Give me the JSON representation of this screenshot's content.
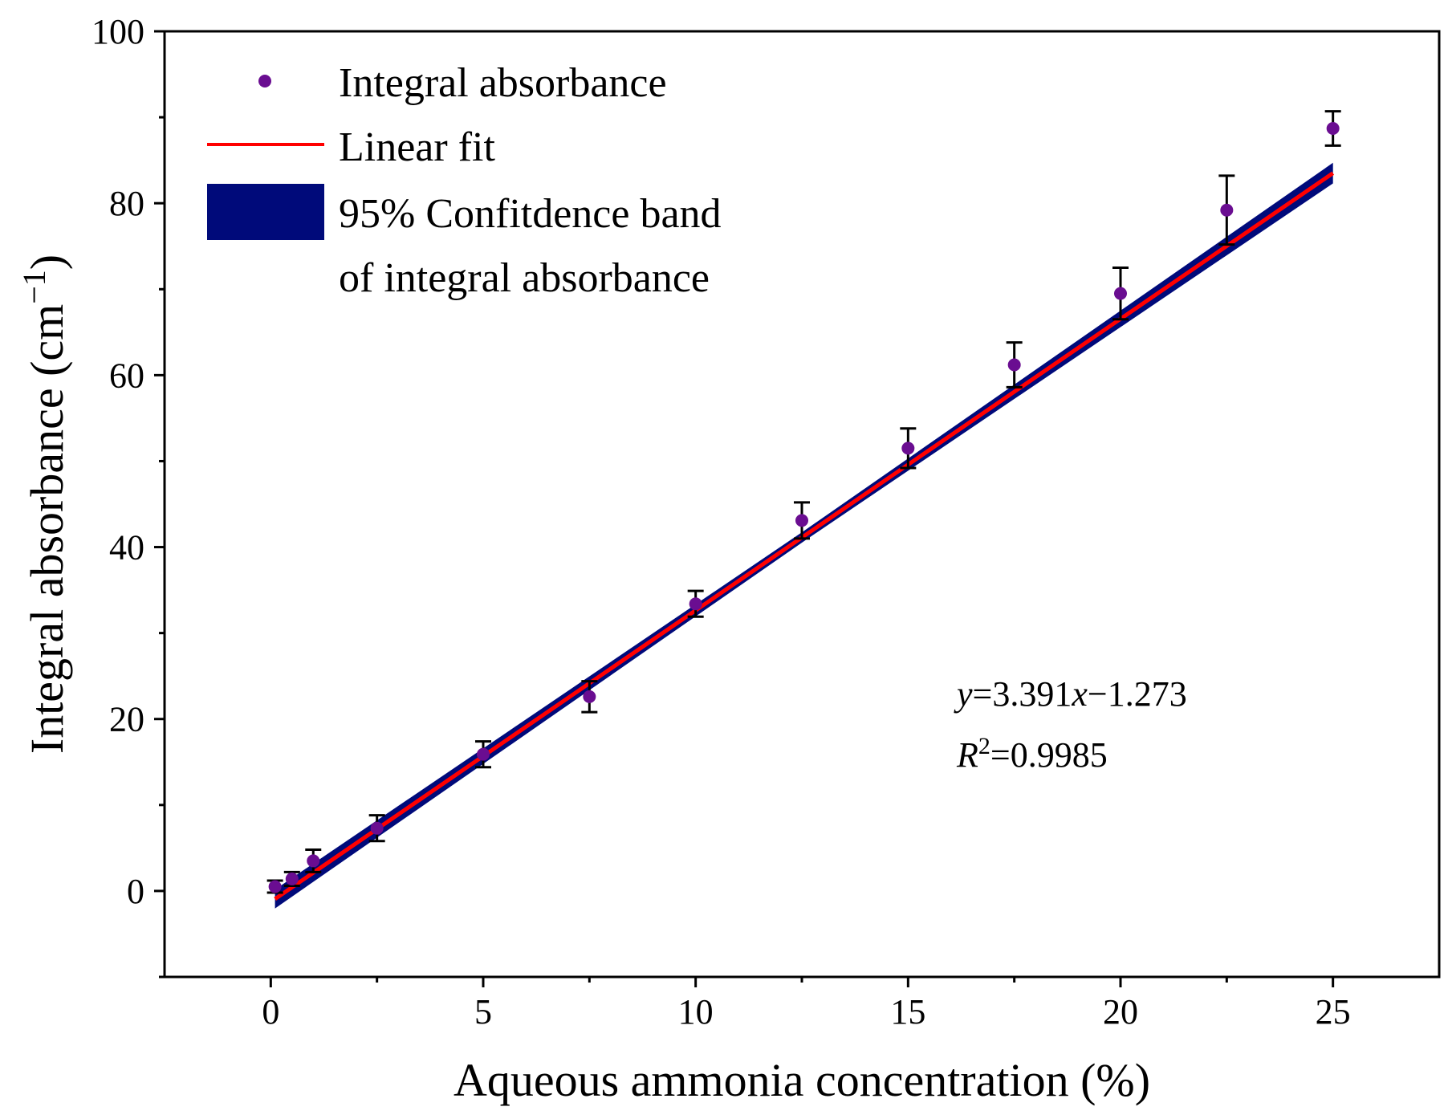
{
  "chart_data": {
    "type": "scatter",
    "title": "",
    "xlabel": "Aqueous ammonia concentration (%)",
    "ylabel": {
      "main": "Integral absorbance (cm",
      "sup": "−1",
      "close": ")"
    },
    "xlim": [
      -2.5,
      27.5
    ],
    "ylim": [
      -10,
      100
    ],
    "x_ticks": [
      0,
      5,
      10,
      15,
      20,
      25
    ],
    "y_ticks": [
      0,
      20,
      40,
      60,
      80,
      100
    ],
    "y_minor_ticks": [
      -10,
      10,
      30,
      50,
      70,
      90
    ],
    "grid": false,
    "legend_position": "top-left",
    "series": [
      {
        "name": "Integral absorbance",
        "kind": "points",
        "color": "#6a0d91",
        "x": [
          0.1,
          0.5,
          1.0,
          2.5,
          5.0,
          7.5,
          10.0,
          12.5,
          15.0,
          17.5,
          20.0,
          22.5,
          25.0
        ],
        "y": [
          0.5,
          1.4,
          3.5,
          7.3,
          15.9,
          22.6,
          33.4,
          43.1,
          51.5,
          61.2,
          69.5,
          79.2,
          88.7
        ],
        "yerr": [
          0.7,
          0.8,
          1.3,
          1.5,
          1.5,
          1.8,
          1.5,
          2.1,
          2.3,
          2.6,
          3.0,
          4.0,
          2.0
        ]
      },
      {
        "name": "Linear fit",
        "kind": "line",
        "color": "#ff0000",
        "slope": 3.391,
        "intercept": -1.273,
        "x_range": [
          0.1,
          25.0
        ]
      },
      {
        "name": "95% Confitdence band",
        "name_line2": "of integral absorbance",
        "kind": "band",
        "color": "#000a7a",
        "half_width": [
          1.1,
          0.6,
          1.2
        ]
      }
    ],
    "annotations": {
      "equation": {
        "y": "y",
        "rest1": "=3.391",
        "x": "x",
        "rest2": "−1.273"
      },
      "r_squared": {
        "r": "R",
        "sup": "2",
        "rest": "=0.9985"
      }
    }
  }
}
